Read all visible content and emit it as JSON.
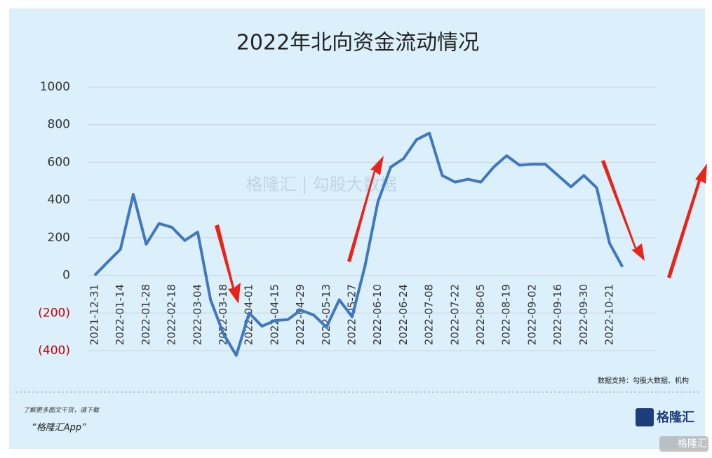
{
  "chart_data": {
    "type": "line",
    "title": "2022年北向资金流动情况",
    "categories": [
      "2021-12-31",
      null,
      "2022-01-14",
      null,
      "2022-01-28",
      null,
      "2022-02-18",
      null,
      "2022-03-04",
      null,
      "2022-03-18",
      null,
      "2022-04-01",
      null,
      "2022-04-15",
      null,
      "2022-04-29",
      null,
      "2022-05-13",
      null,
      "2022-05-27",
      null,
      "2022-06-10",
      null,
      "2022-06-24",
      null,
      "2022-07-08",
      null,
      "2022-07-22",
      null,
      "2022-08-05",
      null,
      "2022-08-19",
      null,
      "2022-09-02",
      null,
      "2022-09-16",
      null,
      "2022-09-30",
      null,
      "2022-10-21",
      null
    ],
    "series": [
      {
        "name": "北向资金",
        "color": "#3f77c0",
        "values": [
          0,
          70,
          138,
          430,
          165,
          275,
          255,
          185,
          230,
          -130,
          -310,
          -425,
          -200,
          -270,
          -240,
          -235,
          -185,
          -210,
          -275,
          -130,
          -220,
          50,
          390,
          575,
          620,
          720,
          755,
          530,
          495,
          510,
          495,
          575,
          635,
          585,
          590,
          590,
          530,
          470,
          530,
          465,
          170,
          45
        ]
      }
    ],
    "ylim": [
      -400,
      1000
    ],
    "yticks": [
      {
        "value": -400,
        "label": "(400)"
      },
      {
        "value": -200,
        "label": "(200)"
      },
      0,
      200,
      400,
      600,
      800,
      1000
    ],
    "negative_tick_color": "#c00000",
    "grid": true,
    "source": "数据支持：勾股大数据、机构",
    "watermark": "格隆汇 | 勾股大数据",
    "footer_note": "了解更多图文干货，请下载",
    "footer_app": "“格隆汇App”",
    "logo": "格隆汇",
    "badge": "格隆汇"
  }
}
